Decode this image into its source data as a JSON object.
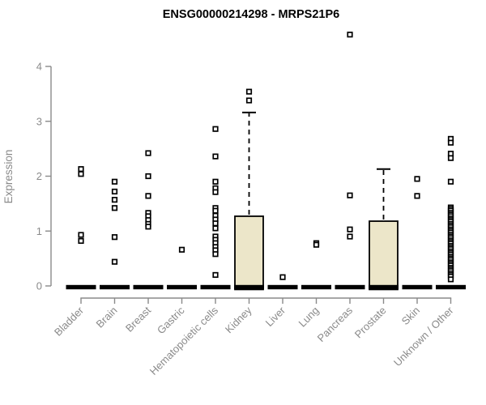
{
  "title": "ENSG00000214298 - MRPS21P6",
  "colors": {
    "title": "#000000",
    "axis": "#8a8a8a",
    "tick_label": "#8a8a8a",
    "box_fill": "#ece6c9",
    "box_border": "#000000",
    "point": "#000000",
    "median_bar": "#000000",
    "background": "#ffffff"
  },
  "chart_data": {
    "type": "boxplot",
    "title": "ENSG00000214298 - MRPS21P6",
    "xlabel": "",
    "ylabel": "Expression",
    "ylim": [
      0,
      4
    ],
    "yticks": [
      0,
      1,
      2,
      3,
      4
    ],
    "grid": false,
    "legend": false,
    "x_tick_rotation_deg": 45,
    "marker": "open-square",
    "categories": [
      "Bladder",
      "Brain",
      "Breast",
      "Gastric",
      "Hematopoietic cells",
      "Kidney",
      "Liver",
      "Lung",
      "Pancreas",
      "Prostate",
      "Skin",
      "Unknown / Other"
    ],
    "series": [
      {
        "category": "Bladder",
        "median": 0,
        "points": [
          2.13,
          2.04,
          0.93,
          0.82
        ]
      },
      {
        "category": "Brain",
        "median": 0,
        "points": [
          1.9,
          1.72,
          1.57,
          1.42,
          0.89,
          0.44
        ]
      },
      {
        "category": "Breast",
        "median": 0,
        "points": [
          2.42,
          2.0,
          1.64,
          1.33,
          1.27,
          1.2,
          1.13,
          1.08
        ]
      },
      {
        "category": "Gastric",
        "median": 0,
        "points": [
          0.66
        ]
      },
      {
        "category": "Hematopoietic cells",
        "median": 0,
        "points": [
          2.86,
          2.36,
          1.9,
          1.78,
          1.71,
          1.42,
          1.37,
          1.28,
          1.21,
          1.14,
          1.05,
          0.9,
          0.84,
          0.78,
          0.71,
          0.65,
          0.58,
          0.2
        ]
      },
      {
        "category": "Kidney",
        "median": 0,
        "box": {
          "q1": 0,
          "q3": 1.27,
          "whisker_high": 3.16
        },
        "points": [
          3.54,
          3.38
        ]
      },
      {
        "category": "Liver",
        "median": 0,
        "points": [
          0.16
        ]
      },
      {
        "category": "Lung",
        "median": 0,
        "points": [
          0.78,
          0.75
        ]
      },
      {
        "category": "Pancreas",
        "median": 0,
        "points": [
          4.58,
          1.65,
          1.03,
          0.9
        ]
      },
      {
        "category": "Prostate",
        "median": 0,
        "box": {
          "q1": 0,
          "q3": 1.18,
          "whisker_high": 2.13
        },
        "points": []
      },
      {
        "category": "Skin",
        "median": 0,
        "points": [
          1.95,
          1.64
        ]
      },
      {
        "category": "Unknown / Other",
        "median": 0,
        "points": [
          2.68,
          2.61,
          2.41,
          2.33,
          1.9,
          1.43,
          1.4,
          1.37,
          1.33,
          1.3,
          1.27,
          1.23,
          1.2,
          1.17,
          1.13,
          1.1,
          1.07,
          1.03,
          1.0,
          0.97,
          0.93,
          0.9,
          0.87,
          0.83,
          0.8,
          0.77,
          0.73,
          0.7,
          0.67,
          0.63,
          0.6,
          0.57,
          0.53,
          0.5,
          0.47,
          0.43,
          0.4,
          0.37,
          0.33,
          0.3,
          0.27,
          0.23,
          0.2,
          0.17,
          0.12
        ]
      }
    ]
  }
}
